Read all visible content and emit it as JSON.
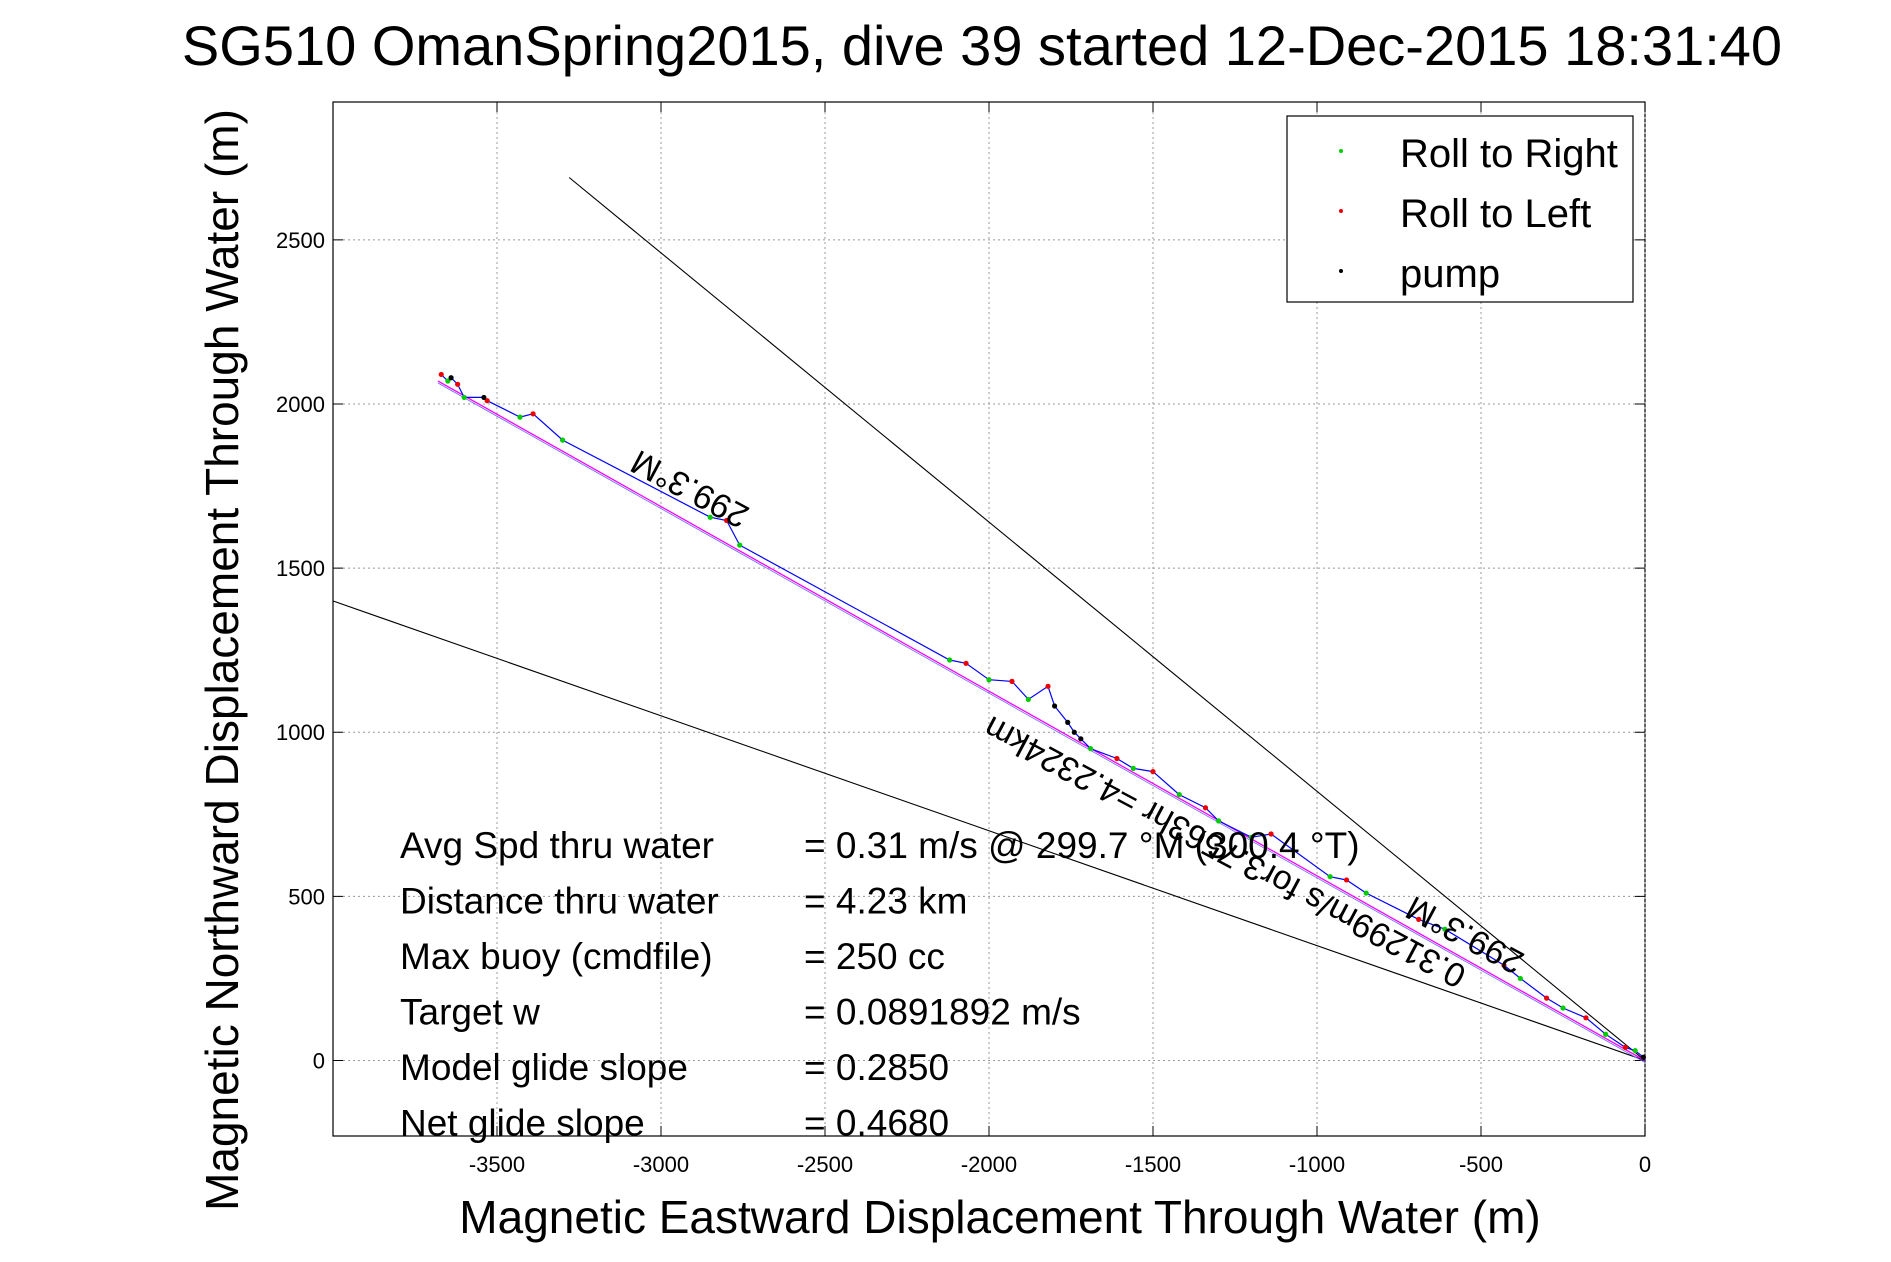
{
  "chart_data": {
    "type": "line",
    "title": "SG510 OmanSpring2015, dive 39 started 12-Dec-2015 18:31:40",
    "xlabel": "Magnetic Eastward Displacement Through Water (m)",
    "ylabel": "Magnetic Northward Displacement Through Water (m)",
    "xlim": [
      -4000,
      0
    ],
    "ylim": [
      -230,
      2920
    ],
    "x_ticks": [
      -3500,
      -3000,
      -2500,
      -2000,
      -1500,
      -1000,
      -500,
      0
    ],
    "y_ticks": [
      0,
      500,
      1000,
      1500,
      2000,
      2500
    ],
    "grid": true,
    "legend_position": "top-right",
    "series": [
      {
        "name": "Roll to Right",
        "color": "#00cc00",
        "marker": "dot",
        "x": [
          -3650,
          -3600,
          -3430,
          -3300,
          -2850,
          -2760,
          -2120,
          -2000,
          -1880,
          -1690,
          -1560,
          -1420,
          -1300,
          -1200,
          -960,
          -850,
          -610,
          -380,
          -250,
          -120,
          -30
        ],
        "y": [
          2070,
          2020,
          1960,
          1890,
          1655,
          1570,
          1220,
          1160,
          1100,
          950,
          890,
          810,
          730,
          680,
          560,
          510,
          400,
          250,
          160,
          80,
          30
        ]
      },
      {
        "name": "Roll to Left",
        "color": "#ee0000",
        "marker": "dot",
        "x": [
          -3670,
          -3620,
          -3530,
          -3390,
          -2800,
          -2070,
          -1930,
          -1820,
          -1610,
          -1500,
          -1340,
          -1140,
          -910,
          -690,
          -430,
          -300,
          -180,
          -60
        ],
        "y": [
          2090,
          2060,
          2010,
          1970,
          1645,
          1210,
          1155,
          1140,
          920,
          880,
          770,
          690,
          550,
          430,
          290,
          190,
          130,
          40
        ]
      },
      {
        "name": "pump",
        "color": "#000000",
        "marker": "dot",
        "x": [
          -3640,
          -3540,
          -1800,
          -1760,
          -1740,
          -1720,
          -5
        ],
        "y": [
          2080,
          2020,
          1080,
          1030,
          1000,
          980,
          10
        ]
      }
    ],
    "lines": {
      "track_color": "#0000ff",
      "fit_color": "#ff00ff",
      "direction_color": "#000000"
    },
    "annotations": {
      "heading_upper": "299.3°M",
      "heading_lower": "299.3°M",
      "distance_label": "0.31299m/s for3.7563hr =4.2324km"
    },
    "stats": [
      {
        "label": "Avg Spd thru water",
        "value": "=  0.31 m/s @ 299.7   °M (300.4  °T)"
      },
      {
        "label": "Distance thru water",
        "value": "=  4.23 km"
      },
      {
        "label": "Max buoy (cmdfile)",
        "value": "= 250 cc"
      },
      {
        "label": "Target w",
        "value": "= 0.0891892 m/s"
      },
      {
        "label": "Model glide slope",
        "value": "= 0.2850"
      },
      {
        "label": "Net glide slope",
        "value": "= 0.4680"
      }
    ]
  }
}
